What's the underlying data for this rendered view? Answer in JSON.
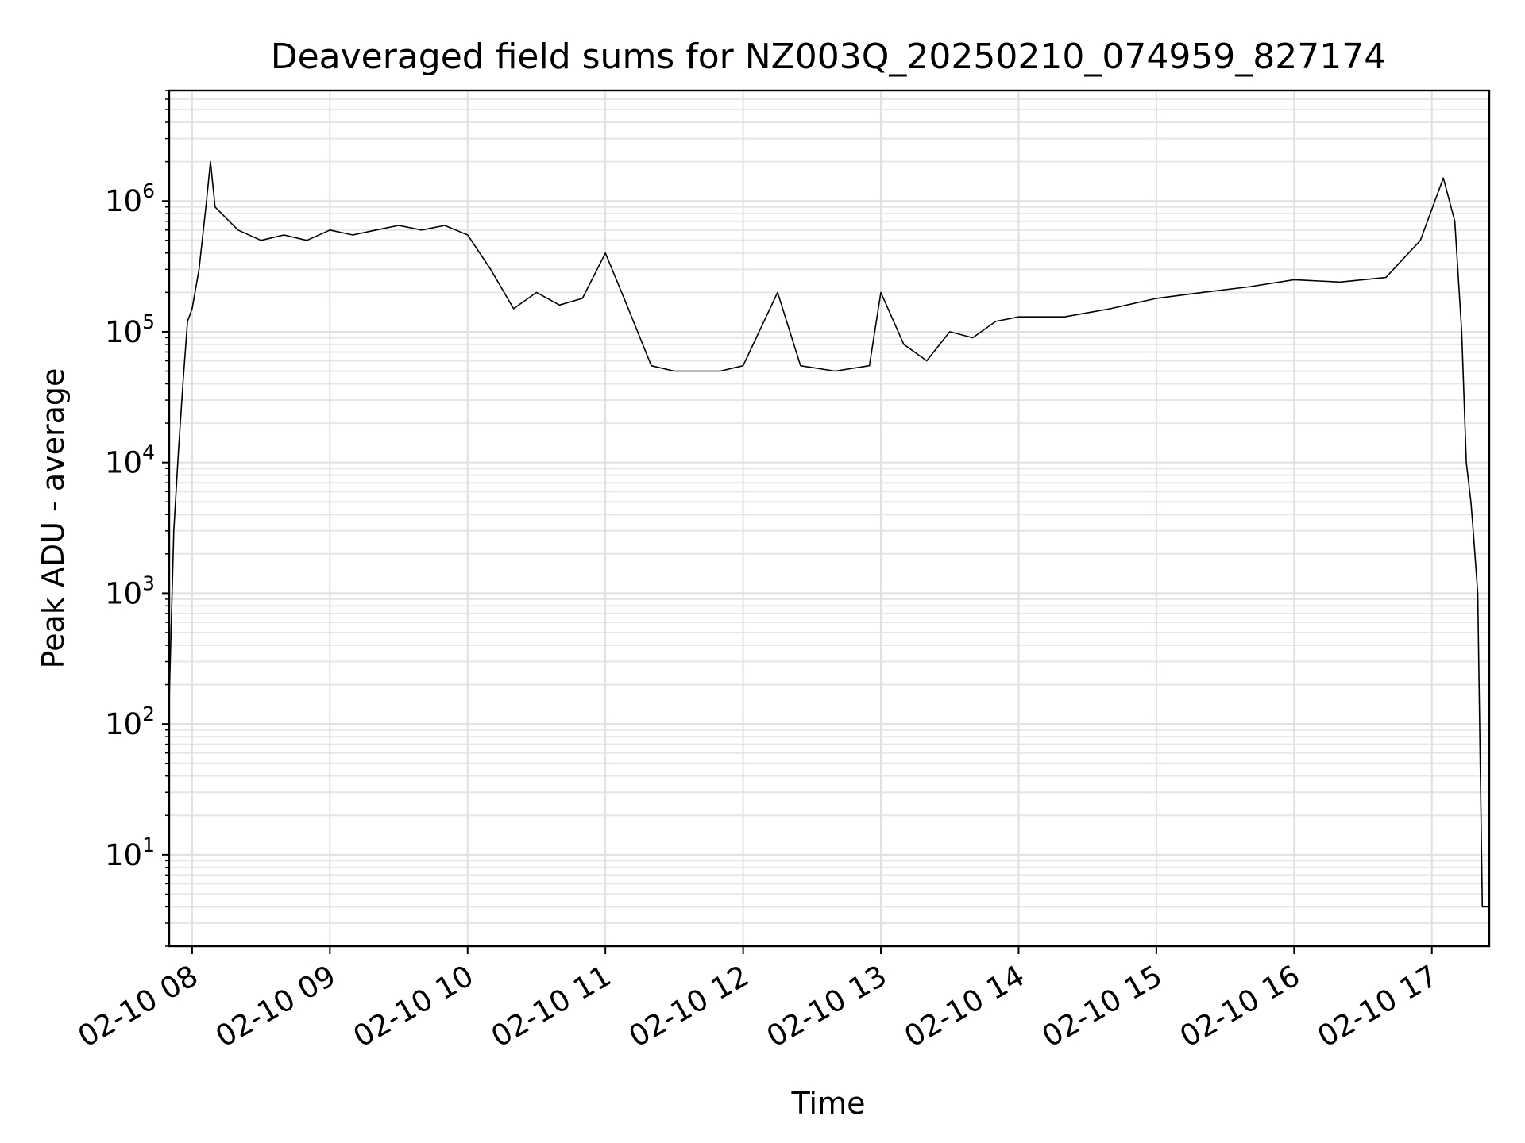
{
  "chart_data": {
    "type": "line",
    "title": "Deaveraged field sums for NZ003Q_20250210_074959_827174",
    "xlabel": "Time",
    "ylabel": "Peak ADU - average",
    "yscale": "log",
    "xlim": [
      "2025-02-10 07:50",
      "2025-02-10 17:25"
    ],
    "ylim": [
      2,
      7000000
    ],
    "grid": true,
    "line_color": "#000000",
    "x_ticks": [
      {
        "value": "2025-02-10 08:00",
        "label": "02-10 08"
      },
      {
        "value": "2025-02-10 09:00",
        "label": "02-10 09"
      },
      {
        "value": "2025-02-10 10:00",
        "label": "02-10 10"
      },
      {
        "value": "2025-02-10 11:00",
        "label": "02-10 11"
      },
      {
        "value": "2025-02-10 12:00",
        "label": "02-10 12"
      },
      {
        "value": "2025-02-10 13:00",
        "label": "02-10 13"
      },
      {
        "value": "2025-02-10 14:00",
        "label": "02-10 14"
      },
      {
        "value": "2025-02-10 15:00",
        "label": "02-10 15"
      },
      {
        "value": "2025-02-10 16:00",
        "label": "02-10 16"
      },
      {
        "value": "2025-02-10 17:00",
        "label": "02-10 17"
      }
    ],
    "y_ticks": [
      {
        "value": 10,
        "base": "10",
        "exp": "1"
      },
      {
        "value": 100,
        "base": "10",
        "exp": "2"
      },
      {
        "value": 1000,
        "base": "10",
        "exp": "3"
      },
      {
        "value": 10000,
        "base": "10",
        "exp": "4"
      },
      {
        "value": 100000,
        "base": "10",
        "exp": "5"
      },
      {
        "value": 1000000,
        "base": "10",
        "exp": "6"
      }
    ],
    "series": [
      {
        "points": [
          [
            "2025-02-10 07:50",
            150
          ],
          [
            "2025-02-10 07:52",
            3000
          ],
          [
            "2025-02-10 07:54",
            12000
          ],
          [
            "2025-02-10 07:56",
            40000
          ],
          [
            "2025-02-10 07:58",
            120000
          ],
          [
            "2025-02-10 08:00",
            150000
          ],
          [
            "2025-02-10 08:03",
            300000
          ],
          [
            "2025-02-10 08:06",
            900000
          ],
          [
            "2025-02-10 08:08",
            2000000
          ],
          [
            "2025-02-10 08:10",
            900000
          ],
          [
            "2025-02-10 08:20",
            600000
          ],
          [
            "2025-02-10 08:30",
            500000
          ],
          [
            "2025-02-10 08:40",
            550000
          ],
          [
            "2025-02-10 08:50",
            500000
          ],
          [
            "2025-02-10 09:00",
            600000
          ],
          [
            "2025-02-10 09:10",
            550000
          ],
          [
            "2025-02-10 09:20",
            600000
          ],
          [
            "2025-02-10 09:30",
            650000
          ],
          [
            "2025-02-10 09:40",
            600000
          ],
          [
            "2025-02-10 09:50",
            650000
          ],
          [
            "2025-02-10 10:00",
            550000
          ],
          [
            "2025-02-10 10:10",
            300000
          ],
          [
            "2025-02-10 10:20",
            150000
          ],
          [
            "2025-02-10 10:30",
            200000
          ],
          [
            "2025-02-10 10:40",
            160000
          ],
          [
            "2025-02-10 10:50",
            180000
          ],
          [
            "2025-02-10 11:00",
            400000
          ],
          [
            "2025-02-10 11:10",
            150000
          ],
          [
            "2025-02-10 11:20",
            55000
          ],
          [
            "2025-02-10 11:30",
            50000
          ],
          [
            "2025-02-10 11:40",
            50000
          ],
          [
            "2025-02-10 11:50",
            50000
          ],
          [
            "2025-02-10 12:00",
            55000
          ],
          [
            "2025-02-10 12:15",
            200000
          ],
          [
            "2025-02-10 12:25",
            55000
          ],
          [
            "2025-02-10 12:40",
            50000
          ],
          [
            "2025-02-10 12:55",
            55000
          ],
          [
            "2025-02-10 13:00",
            200000
          ],
          [
            "2025-02-10 13:10",
            80000
          ],
          [
            "2025-02-10 13:20",
            60000
          ],
          [
            "2025-02-10 13:30",
            100000
          ],
          [
            "2025-02-10 13:40",
            90000
          ],
          [
            "2025-02-10 13:50",
            120000
          ],
          [
            "2025-02-10 14:00",
            130000
          ],
          [
            "2025-02-10 14:20",
            130000
          ],
          [
            "2025-02-10 14:40",
            150000
          ],
          [
            "2025-02-10 15:00",
            180000
          ],
          [
            "2025-02-10 15:20",
            200000
          ],
          [
            "2025-02-10 15:40",
            220000
          ],
          [
            "2025-02-10 16:00",
            250000
          ],
          [
            "2025-02-10 16:20",
            240000
          ],
          [
            "2025-02-10 16:40",
            260000
          ],
          [
            "2025-02-10 16:55",
            500000
          ],
          [
            "2025-02-10 17:05",
            1500000
          ],
          [
            "2025-02-10 17:10",
            700000
          ],
          [
            "2025-02-10 17:13",
            100000
          ],
          [
            "2025-02-10 17:15",
            10000
          ],
          [
            "2025-02-10 17:17",
            5000
          ],
          [
            "2025-02-10 17:18",
            3000
          ],
          [
            "2025-02-10 17:20",
            1000
          ],
          [
            "2025-02-10 17:22",
            4
          ],
          [
            "2025-02-10 17:25",
            4
          ]
        ]
      }
    ]
  }
}
